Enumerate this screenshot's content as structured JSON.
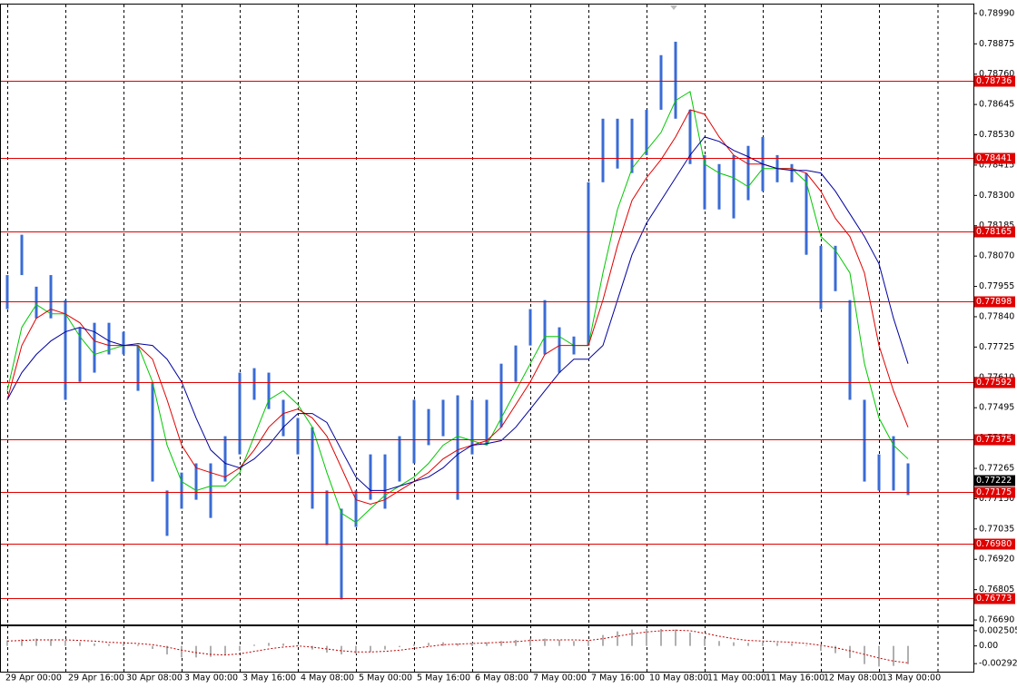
{
  "chart_data": [
    {
      "type": "ohlc",
      "categories": [
        "29 Apr 00:00",
        null,
        null,
        null,
        "29 Apr 16:00",
        null,
        null,
        null,
        "30 Apr 08:00",
        null,
        null,
        null,
        "3 May 00:00",
        null,
        null,
        null,
        "3 May 16:00",
        null,
        null,
        null,
        "4 May 08:00",
        null,
        null,
        null,
        "5 May 00:00",
        null,
        null,
        null,
        "5 May 16:00",
        null,
        null,
        null,
        "6 May 08:00",
        null,
        null,
        null,
        "7 May 00:00",
        null,
        null,
        null,
        "7 May 16:00",
        null,
        null,
        null,
        "10 May 08:00",
        null,
        null,
        null,
        "11 May 00:00",
        null,
        null,
        null,
        "11 May 16:00",
        null,
        null,
        null,
        "12 May 08:00",
        null,
        null,
        null,
        "13 May 00:00",
        null,
        null
      ],
      "high": [
        0.77998,
        0.78151,
        0.77954,
        0.77998,
        0.77903,
        0.778,
        0.77817,
        0.77817,
        0.77783,
        0.77731,
        0.77593,
        0.77181,
        0.77249,
        0.77284,
        0.77284,
        0.77387,
        0.77628,
        0.77645,
        0.77628,
        0.77525,
        0.77456,
        0.77421,
        0.77181,
        0.77112,
        0.77181,
        0.77318,
        0.77318,
        0.77387,
        0.77525,
        0.7749,
        0.77525,
        0.77542,
        0.77525,
        0.77525,
        0.77662,
        0.77731,
        0.77869,
        0.77903,
        0.778,
        0.77765,
        0.7835,
        0.78591,
        0.78591,
        0.78591,
        0.78625,
        0.78832,
        0.78883,
        0.78625,
        0.78453,
        0.78419,
        0.78453,
        0.78488,
        0.78522,
        0.78453,
        0.78419,
        0.78385,
        0.78109,
        0.78109,
        0.77903,
        0.77525,
        0.77318,
        0.77387,
        0.77284
      ],
      "low": [
        0.77869,
        0.77998,
        0.77834,
        0.77834,
        0.77525,
        0.77593,
        0.77628,
        0.77697,
        0.77697,
        0.77559,
        0.77215,
        0.77009,
        0.77112,
        0.77146,
        0.77077,
        0.77215,
        0.77318,
        0.77525,
        0.7749,
        0.77387,
        0.77318,
        0.77112,
        0.76974,
        0.76768,
        0.77043,
        0.77146,
        0.77112,
        0.77215,
        0.77284,
        0.77353,
        0.77387,
        0.77146,
        0.77318,
        0.77353,
        0.77421,
        0.77593,
        0.77731,
        0.77697,
        0.77628,
        0.77697,
        0.77731,
        0.7835,
        0.78402,
        0.78385,
        0.78453,
        0.78625,
        0.78591,
        0.78419,
        0.78247,
        0.78247,
        0.78213,
        0.78282,
        0.78316,
        0.7835,
        0.7835,
        0.78075,
        0.77869,
        0.77937,
        0.77525,
        0.77215,
        0.77181,
        0.77181,
        0.77164
      ],
      "color": "#3a6bd6",
      "series": [
        {
          "color": "#00c800",
          "values": [
            0.77559,
            0.778,
            0.77886,
            0.77851,
            0.77851,
            0.77765,
            0.77697,
            0.77714,
            0.77731,
            0.77731,
            0.77593,
            0.77353,
            0.77215,
            0.77181,
            0.77198,
            0.77198,
            0.77249,
            0.77387,
            0.77525,
            0.77559,
            0.77507,
            0.77421,
            0.77249,
            0.77095,
            0.7706,
            0.77112,
            0.77163,
            0.77198,
            0.77232,
            0.77284,
            0.77353,
            0.77387,
            0.7737,
            0.77353,
            0.77456,
            0.77559,
            0.77662,
            0.77765,
            0.77765,
            0.77731,
            0.77731,
            0.78006,
            0.78247,
            0.78402,
            0.78471,
            0.78539,
            0.7866,
            0.78694,
            0.78419,
            0.78385,
            0.78367,
            0.78333,
            0.78402,
            0.78402,
            0.78402,
            0.7835,
            0.78144,
            0.78092,
            0.78006,
            0.77662,
            0.77456,
            0.77353,
            0.77301
          ]
        },
        {
          "color": "#e00000",
          "values": [
            0.77525,
            0.77731,
            0.77834,
            0.77869,
            0.77851,
            0.77817,
            0.77748,
            0.77731,
            0.77731,
            0.77731,
            0.77679,
            0.77525,
            0.77353,
            0.77267,
            0.77249,
            0.77232,
            0.77267,
            0.77335,
            0.77421,
            0.77473,
            0.7749,
            0.77456,
            0.77387,
            0.77267,
            0.77146,
            0.77129,
            0.77146,
            0.77181,
            0.77215,
            0.77249,
            0.77301,
            0.77335,
            0.77353,
            0.7737,
            0.77421,
            0.77507,
            0.77593,
            0.77697,
            0.77731,
            0.77731,
            0.77731,
            0.77903,
            0.78109,
            0.78281,
            0.78367,
            0.78436,
            0.78522,
            0.78625,
            0.78608,
            0.78522,
            0.78453,
            0.78419,
            0.78419,
            0.78402,
            0.78402,
            0.78385,
            0.78316,
            0.78213,
            0.78144,
            0.78006,
            0.77731,
            0.77559,
            0.77421
          ]
        },
        {
          "color": "#0000a0",
          "values": [
            0.77525,
            0.77628,
            0.77697,
            0.77748,
            0.77783,
            0.778,
            0.77783,
            0.77748,
            0.77731,
            0.77738,
            0.77731,
            0.77679,
            0.77593,
            0.77456,
            0.77335,
            0.77284,
            0.77267,
            0.77301,
            0.77353,
            0.77421,
            0.77473,
            0.77473,
            0.77439,
            0.77335,
            0.77232,
            0.77181,
            0.77181,
            0.77198,
            0.77215,
            0.77232,
            0.77267,
            0.77318,
            0.77353,
            0.77359,
            0.7737,
            0.77421,
            0.7749,
            0.77559,
            0.77628,
            0.77679,
            0.77679,
            0.77731,
            0.77903,
            0.78075,
            0.78195,
            0.78281,
            0.78367,
            0.78453,
            0.78522,
            0.78505,
            0.78471,
            0.78447,
            0.78419,
            0.78402,
            0.78395,
            0.78395,
            0.78385,
            0.78316,
            0.7823,
            0.78144,
            0.78041,
            0.77834,
            0.77662
          ]
        }
      ],
      "ylim": [
        0.76673,
        0.79024
      ],
      "yticks": [
        {
          "value": 0.7899,
          "label": "0.78990"
        },
        {
          "value": 0.78875,
          "label": "0.78875"
        },
        {
          "value": 0.7876,
          "label": "0.78760"
        },
        {
          "value": 0.78645,
          "label": "0.78645"
        },
        {
          "value": 0.7853,
          "label": "0.78530"
        },
        {
          "value": 0.78415,
          "label": "0.78415"
        },
        {
          "value": 0.783,
          "label": "0.78300"
        },
        {
          "value": 0.78185,
          "label": "0.78185"
        },
        {
          "value": 0.7807,
          "label": "0.78070"
        },
        {
          "value": 0.77955,
          "label": "0.77955"
        },
        {
          "value": 0.7784,
          "label": "0.77840"
        },
        {
          "value": 0.77725,
          "label": "0.77725"
        },
        {
          "value": 0.7761,
          "label": "0.77610"
        },
        {
          "value": 0.77495,
          "label": "0.77495"
        },
        {
          "value": 0.7738,
          "label": "0.77380"
        },
        {
          "value": 0.77265,
          "label": "0.77265"
        },
        {
          "value": 0.7715,
          "label": "0.77150"
        },
        {
          "value": 0.77035,
          "label": "0.77035"
        },
        {
          "value": 0.7692,
          "label": "0.76920"
        },
        {
          "value": 0.76805,
          "label": "0.76805"
        },
        {
          "value": 0.7669,
          "label": "0.76690"
        }
      ],
      "levels": [
        0.78736,
        0.78441,
        0.78165,
        0.77898,
        0.77592,
        0.77375,
        0.77175,
        0.7698,
        0.76773
      ],
      "level_labels": [
        "0.78736",
        "0.78441",
        "0.78165",
        "0.77898",
        "0.77592",
        "0.77375",
        "0.77175",
        "0.76980",
        "0.76773"
      ],
      "level_color": "#e00000",
      "last_price": 0.77222,
      "grid": true
    },
    {
      "type": "oscillator",
      "values": [
        0.0009,
        0.0011,
        0.0012,
        0.0011,
        0.0009,
        0.0006,
        0.0004,
        0.0003,
        0.0003,
        0.0002,
        -0.0005,
        -0.0014,
        -0.0019,
        -0.0019,
        -0.0018,
        -0.0015,
        -0.0008,
        0.0002,
        0.0005,
        0.0004,
        0.0001,
        -0.0006,
        -0.0011,
        -0.0014,
        -0.0013,
        -0.001,
        -0.0006,
        -0.0002,
        0.0003,
        0.0005,
        0.0006,
        0.0004,
        0.0005,
        0.0006,
        0.0008,
        0.001,
        0.0012,
        0.0012,
        0.001,
        0.0008,
        0.0009,
        0.0018,
        0.0024,
        0.0027,
        0.0028,
        0.0028,
        0.0027,
        0.0022,
        0.0012,
        0.0008,
        0.0006,
        0.0005,
        0.0006,
        0.0005,
        0.0004,
        0.0001,
        -0.0008,
        -0.0012,
        -0.002,
        -0.003,
        -0.0034,
        -0.0033,
        -0.003
      ],
      "color": "#b0b0b0",
      "signal": [
        0.0008,
        0.0009,
        0.001,
        0.001,
        0.001,
        0.0009,
        0.0008,
        0.0006,
        0.0005,
        0.0004,
        0.0002,
        -0.0002,
        -0.0007,
        -0.0011,
        -0.0014,
        -0.0015,
        -0.0013,
        -0.0009,
        -0.0005,
        -0.0002,
        0,
        -0.0002,
        -0.0005,
        -0.0008,
        -0.001,
        -0.001,
        -0.0009,
        -0.0007,
        -0.0004,
        -0.0001,
        0.0002,
        0.0003,
        0.0004,
        0.0005,
        0.0006,
        0.0007,
        0.0009,
        0.001,
        0.001,
        0.001,
        0.0009,
        0.0012,
        0.0016,
        0.002,
        0.0023,
        0.0025,
        0.0026,
        0.0025,
        0.0021,
        0.0016,
        0.0012,
        0.0009,
        0.0008,
        0.0007,
        0.0006,
        0.0004,
        0.0001,
        -0.0003,
        -0.0008,
        -0.0014,
        -0.002,
        -0.0025,
        -0.0028
      ],
      "signal_color": "#c00000",
      "ylim": [
        -0.00425,
        0.00324
      ],
      "yticks": [
        0.002505,
        {
          "value": 0,
          "label": "0.00"
        },
        -0.002926
      ]
    }
  ]
}
